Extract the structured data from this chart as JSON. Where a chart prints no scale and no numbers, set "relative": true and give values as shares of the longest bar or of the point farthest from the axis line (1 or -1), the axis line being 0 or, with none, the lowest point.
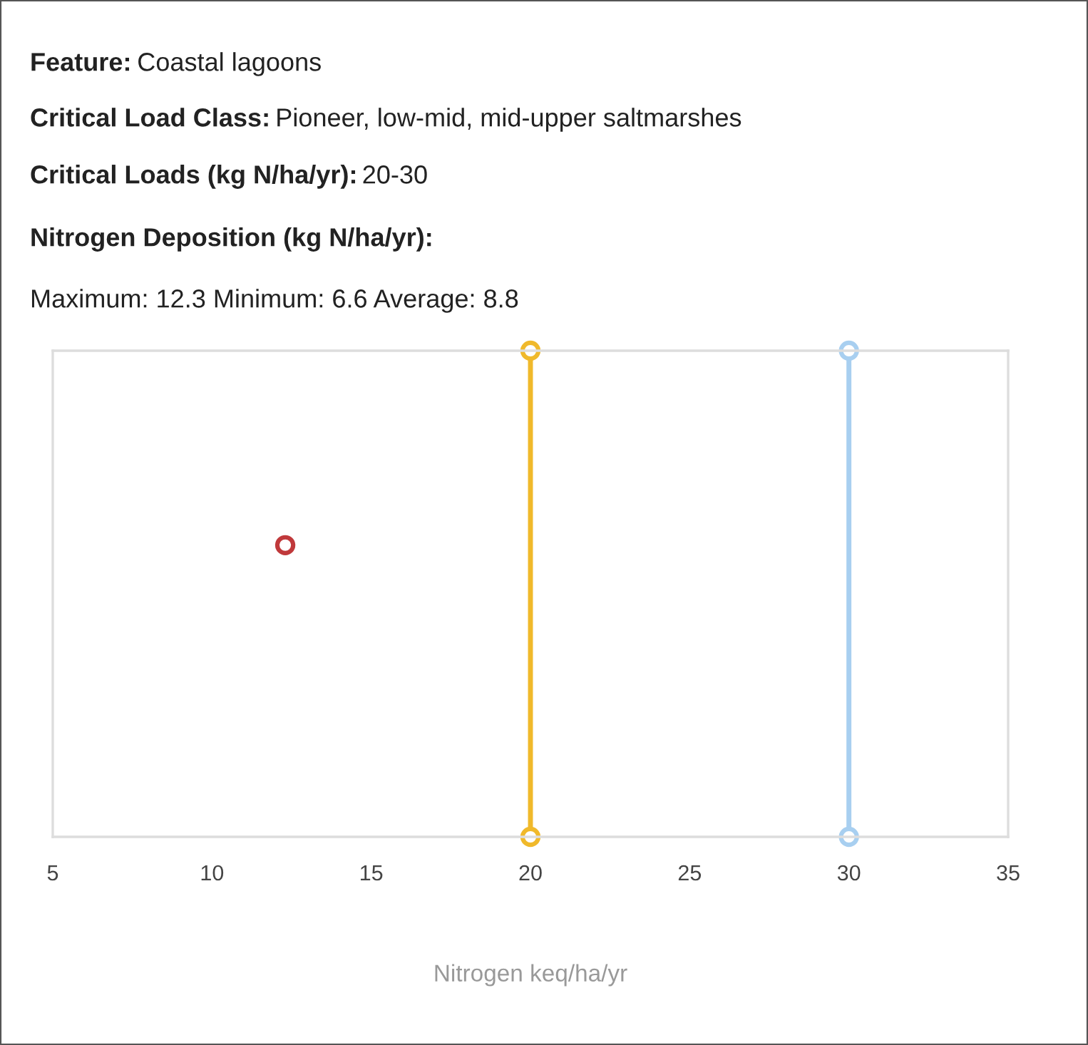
{
  "chart_data": {
    "type": "scatter",
    "relative": true,
    "annotations": [
      "Feature: Coastal lagoons",
      "Critical Load Class: Pioneer, low-mid, mid-upper saltmarshes",
      "Critical Loads (kg N/ha/yr): 20-30",
      "Nitrogen Deposition (kg N/ha/yr):",
      "Maximum: 12.3 Minimum: 6.6 Average: 8.8"
    ],
    "xlabel": "Nitrogen keq/ha/yr",
    "xlim": [
      5,
      35
    ],
    "xticks": [
      5,
      10,
      15,
      20,
      25,
      30,
      35
    ],
    "grid": false,
    "legend": false,
    "tick_labels": "x",
    "marker": "circle",
    "series": [
      {
        "color": "#c0393b",
        "x": [
          12.3
        ],
        "values": [
          0.6
        ]
      },
      {
        "type": "line",
        "color": "#f0b92b",
        "x": [
          20,
          20
        ],
        "values": [
          0,
          1
        ],
        "line_style": "solid"
      },
      {
        "type": "line",
        "color": "#a8cff0",
        "x": [
          30,
          30
        ],
        "values": [
          0,
          1
        ],
        "line_style": "solid"
      }
    ]
  }
}
